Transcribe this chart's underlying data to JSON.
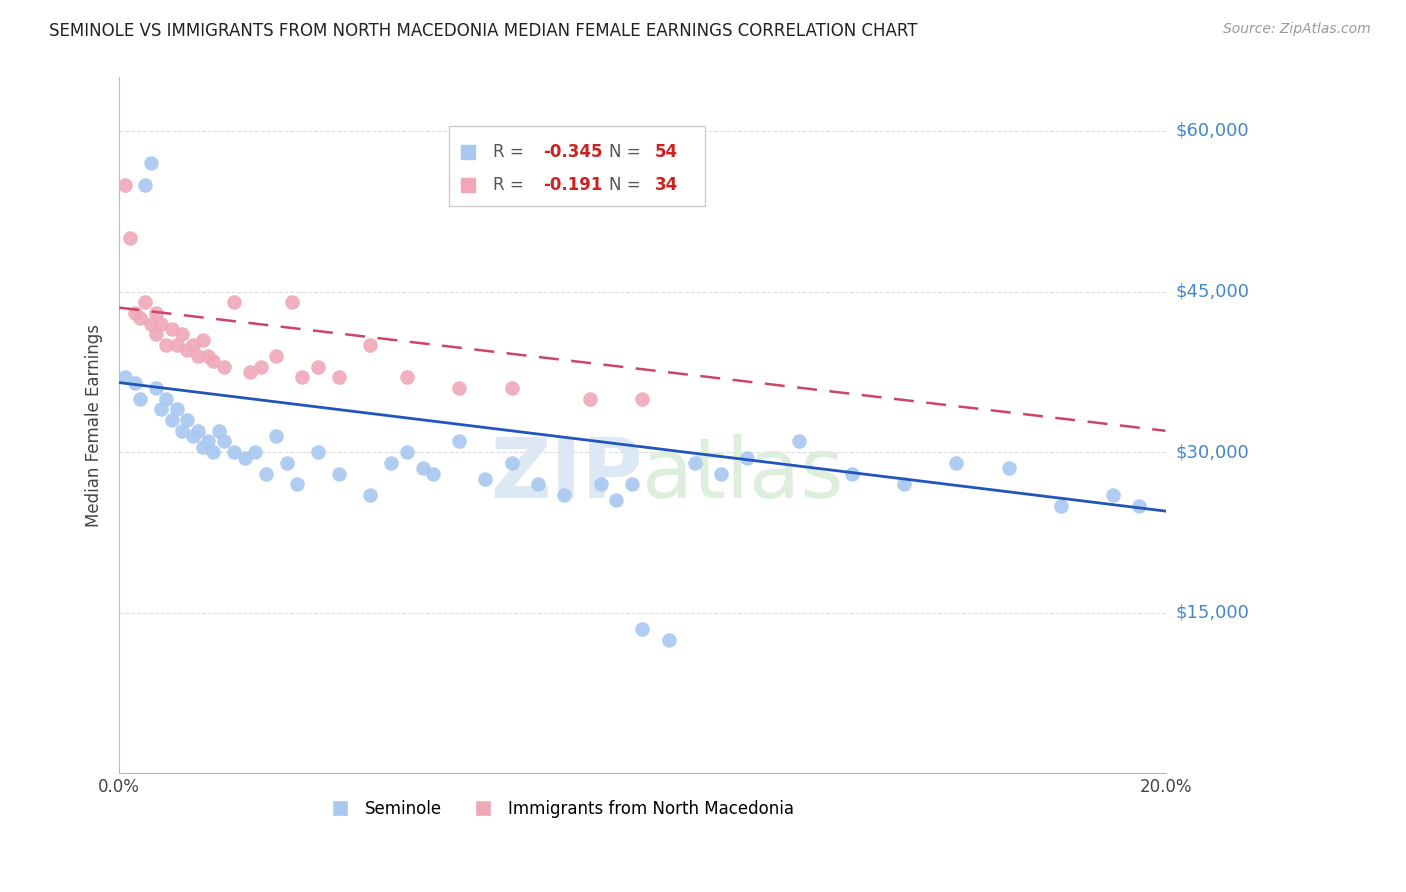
{
  "title": "SEMINOLE VS IMMIGRANTS FROM NORTH MACEDONIA MEDIAN FEMALE EARNINGS CORRELATION CHART",
  "source": "Source: ZipAtlas.com",
  "ylabel_label": "Median Female Earnings",
  "xlim": [
    0.0,
    0.2
  ],
  "ylim": [
    0,
    65000
  ],
  "yticks": [
    0,
    15000,
    30000,
    45000,
    60000
  ],
  "xticks": [
    0.0,
    0.05,
    0.1,
    0.15,
    0.2
  ],
  "background_color": "#ffffff",
  "grid_color": "#dddddd",
  "blue_color": "#a8c8f0",
  "pink_color": "#f0a8b8",
  "blue_line_color": "#2255bb",
  "pink_line_color": "#cc4466",
  "right_label_color": "#4488cc",
  "watermark_zip_color": "#dde8f5",
  "watermark_atlas_color": "#ddeedd",
  "blue_scatter_x": [
    0.001,
    0.003,
    0.004,
    0.005,
    0.006,
    0.007,
    0.008,
    0.009,
    0.01,
    0.011,
    0.012,
    0.013,
    0.014,
    0.015,
    0.016,
    0.017,
    0.018,
    0.019,
    0.02,
    0.022,
    0.024,
    0.026,
    0.028,
    0.03,
    0.032,
    0.034,
    0.038,
    0.042,
    0.048,
    0.052,
    0.055,
    0.058,
    0.06,
    0.065,
    0.07,
    0.075,
    0.08,
    0.085,
    0.092,
    0.095,
    0.098,
    0.1,
    0.105,
    0.11,
    0.115,
    0.12,
    0.13,
    0.14,
    0.15,
    0.16,
    0.17,
    0.18,
    0.19,
    0.195
  ],
  "blue_scatter_y": [
    37000,
    36500,
    35000,
    55000,
    57000,
    36000,
    34000,
    35000,
    33000,
    34000,
    32000,
    33000,
    31500,
    32000,
    30500,
    31000,
    30000,
    32000,
    31000,
    30000,
    29500,
    30000,
    28000,
    31500,
    29000,
    27000,
    30000,
    28000,
    26000,
    29000,
    30000,
    28500,
    28000,
    31000,
    27500,
    29000,
    27000,
    26000,
    27000,
    25500,
    27000,
    13500,
    12500,
    29000,
    28000,
    29500,
    31000,
    28000,
    27000,
    29000,
    28500,
    25000,
    26000,
    25000
  ],
  "pink_scatter_x": [
    0.001,
    0.002,
    0.003,
    0.004,
    0.005,
    0.006,
    0.007,
    0.007,
    0.008,
    0.009,
    0.01,
    0.011,
    0.012,
    0.013,
    0.014,
    0.015,
    0.016,
    0.017,
    0.018,
    0.02,
    0.022,
    0.025,
    0.027,
    0.03,
    0.033,
    0.035,
    0.038,
    0.042,
    0.048,
    0.055,
    0.065,
    0.075,
    0.09,
    0.1
  ],
  "pink_scatter_y": [
    55000,
    50000,
    43000,
    42500,
    44000,
    42000,
    43000,
    41000,
    42000,
    40000,
    41500,
    40000,
    41000,
    39500,
    40000,
    39000,
    40500,
    39000,
    38500,
    38000,
    44000,
    37500,
    38000,
    39000,
    44000,
    37000,
    38000,
    37000,
    40000,
    37000,
    36000,
    36000,
    35000,
    35000
  ],
  "blue_trend_x0": 0.0,
  "blue_trend_x1": 0.2,
  "blue_trend_y0": 36500,
  "blue_trend_y1": 24500,
  "pink_trend_x0": 0.0,
  "pink_trend_x1": 0.2,
  "pink_trend_y0": 43500,
  "pink_trend_y1": 32000
}
